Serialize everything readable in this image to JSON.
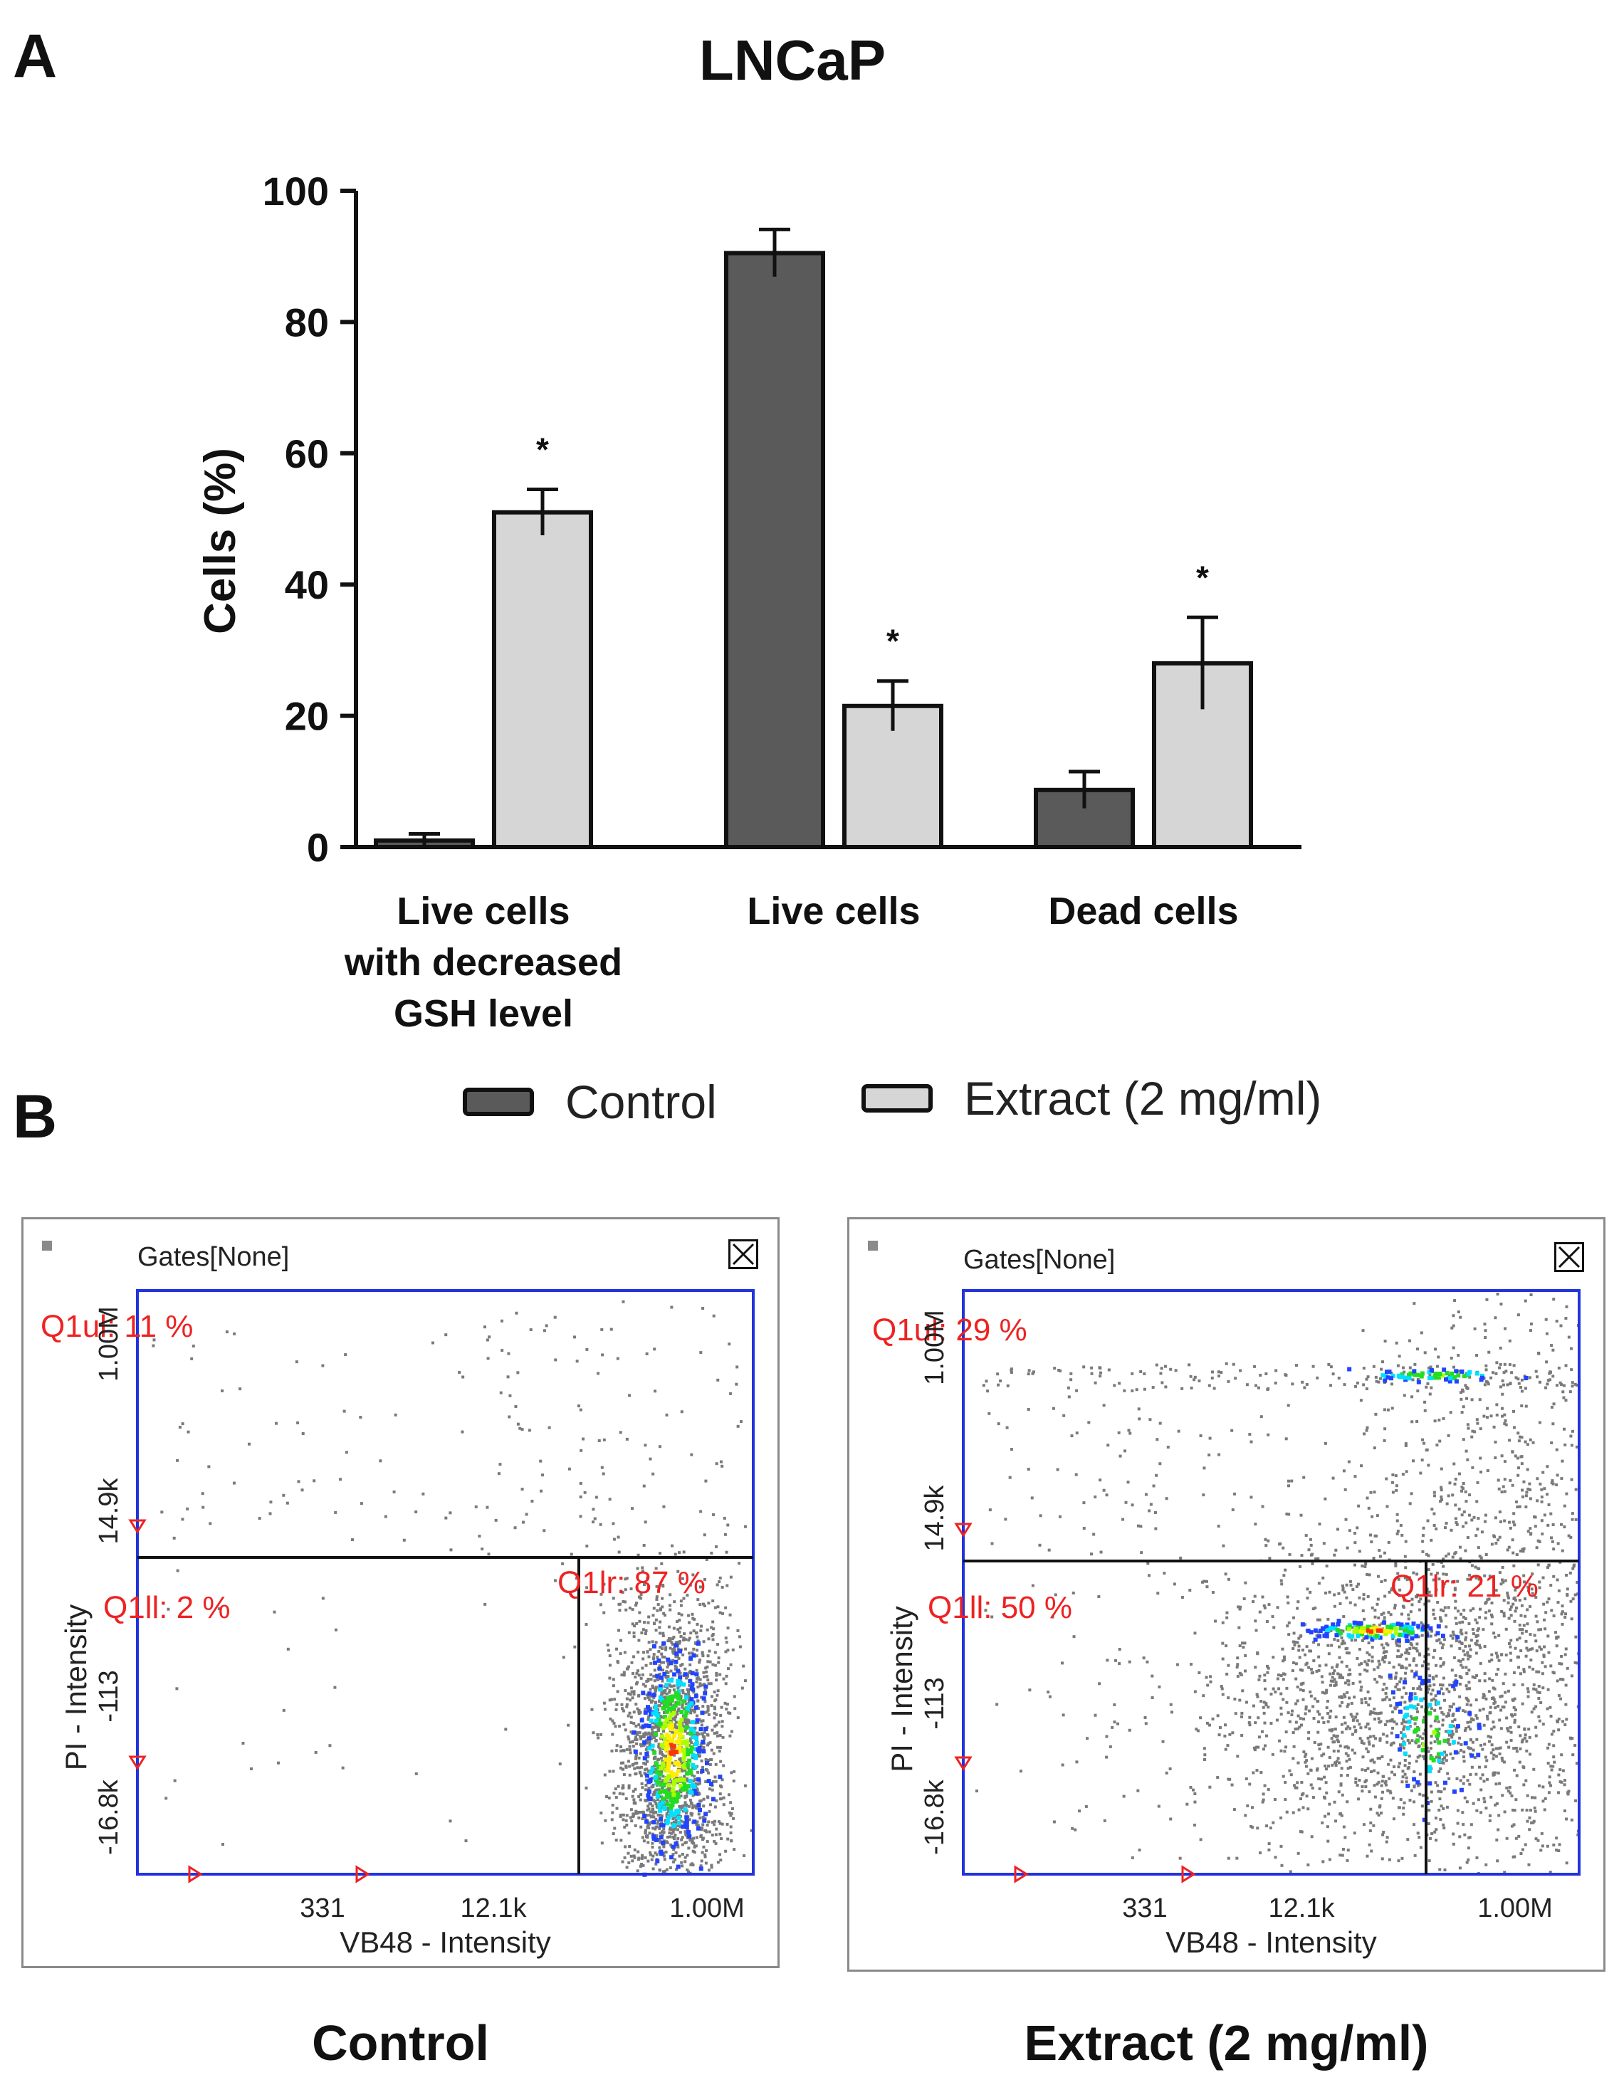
{
  "panel_a": {
    "letter": "A",
    "chart_data": {
      "type": "bar",
      "title": "LNCaP",
      "xlabel": "",
      "ylabel": "Cells (%)",
      "ylim": [
        0,
        100
      ],
      "yticks": [
        0,
        20,
        40,
        60,
        80,
        100
      ],
      "categories": [
        [
          "Live cells",
          "with decreased",
          "GSH level"
        ],
        [
          "Live cells"
        ],
        [
          "Dead cells"
        ]
      ],
      "series": [
        {
          "name": "Control",
          "color": "#5a5a5a",
          "values": [
            1,
            90.5,
            8.7
          ],
          "errors": [
            1,
            3.6,
            2.8
          ],
          "significance": [
            "",
            "",
            ""
          ]
        },
        {
          "name": "Extract (2 mg/ml)",
          "color": "#d6d6d6",
          "values": [
            51,
            21.5,
            28
          ],
          "errors": [
            3.5,
            3.8,
            7
          ],
          "significance": [
            "*",
            "*",
            "*"
          ]
        }
      ],
      "legend": [
        "Control",
        "Extract (2 mg/ml)"
      ]
    }
  },
  "panel_b": {
    "letter": "B",
    "plots": [
      {
        "caption": "Control",
        "gates_label": "Gates[None]",
        "xlabel": "VB48 - Intensity",
        "ylabel": "PI - Intensity",
        "xticks": [
          "331",
          "12.1k",
          "1.00M"
        ],
        "yticks": [
          "1.00M",
          "14.9k",
          "-113",
          "-16.8k"
        ],
        "quadrants": {
          "ul": "Q1ul: 11 %",
          "ll": "Q1ll: 2 %",
          "lr": "Q1lr: 87 %"
        }
      },
      {
        "caption": "Extract (2 mg/ml)",
        "gates_label": "Gates[None]",
        "xlabel": "VB48 - Intensity",
        "ylabel": "PI - Intensity",
        "xticks": [
          "331",
          "12.1k",
          "1.00M"
        ],
        "yticks": [
          "1.00M",
          "14.9k",
          "-113",
          "-16.8k"
        ],
        "quadrants": {
          "ul": "Q1ul: 29 %",
          "ll": "Q1ll: 50 %",
          "lr": "Q1lr: 21 %"
        }
      }
    ],
    "colors": {
      "axis_frame": "#2233dd",
      "quadrant_text": "#ee2222",
      "dot": "#7a7a7a"
    }
  }
}
